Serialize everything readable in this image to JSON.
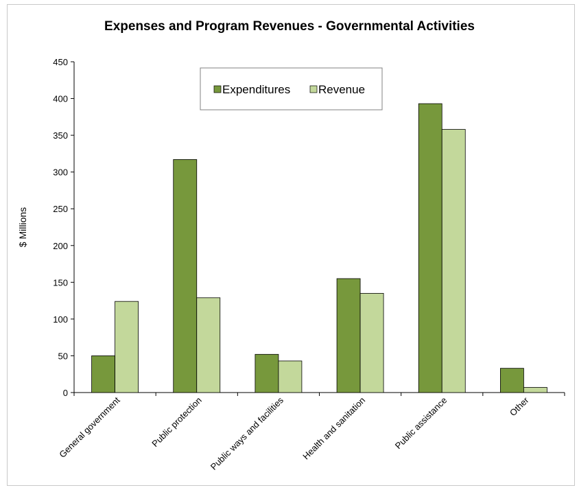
{
  "chart_data": {
    "type": "bar",
    "title": "Expenses and Program Revenues - Governmental Activities",
    "ylabel": "$ Millions",
    "xlabel": "",
    "ylim": [
      0,
      450
    ],
    "yticks": [
      0,
      50,
      100,
      150,
      200,
      250,
      300,
      350,
      400,
      450
    ],
    "categories": [
      "General government",
      "Public protection",
      "Public ways and facilities",
      "Health and sanitation",
      "Public assistance",
      "Other"
    ],
    "series": [
      {
        "name": "Expenditures",
        "color": "#77983c",
        "values": [
          50,
          317,
          52,
          155,
          393,
          33
        ]
      },
      {
        "name": "Revenue",
        "color": "#c3d89b",
        "values": [
          124,
          129,
          43,
          135,
          358,
          7
        ]
      }
    ],
    "legend_position": "top-center",
    "grid": false
  }
}
